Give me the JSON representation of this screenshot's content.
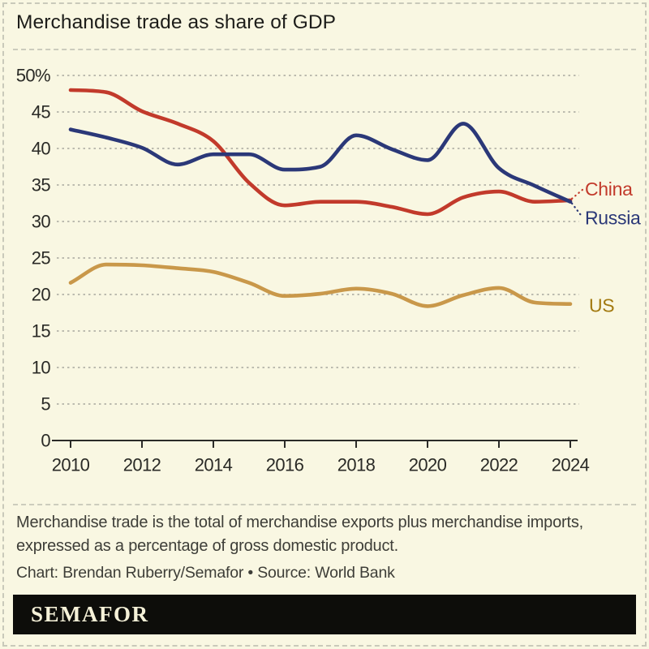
{
  "header": {
    "title": "Merchandise trade as share of GDP"
  },
  "chart_data": {
    "type": "line",
    "title": "Merchandise trade as share of GDP",
    "x": [
      2010,
      2011,
      2012,
      2013,
      2014,
      2015,
      2016,
      2017,
      2018,
      2019,
      2020,
      2021,
      2022,
      2023,
      2024
    ],
    "x_ticks": [
      2010,
      2012,
      2014,
      2016,
      2018,
      2020,
      2022,
      2024
    ],
    "y_ticks": [
      0,
      5,
      10,
      15,
      20,
      25,
      30,
      35,
      40,
      45,
      50
    ],
    "y_tick_labels": [
      "0",
      "5",
      "10",
      "15",
      "20",
      "25",
      "30",
      "35",
      "40",
      "45",
      "50%"
    ],
    "xlim": [
      2010,
      2024
    ],
    "ylim": [
      0,
      50
    ],
    "grid": "horizontal-dashed",
    "legend_position": "end-of-line-labels",
    "series": [
      {
        "name": "China",
        "color": "#c23a2b",
        "label_color": "#c23a2b",
        "values": [
          48.0,
          47.7,
          45.1,
          43.4,
          41.0,
          35.3,
          32.2,
          32.7,
          32.7,
          32.0,
          31.0,
          33.3,
          34.1,
          32.7,
          32.9
        ]
      },
      {
        "name": "Russia",
        "color": "#2b3878",
        "label_color": "#2b3878",
        "values": [
          42.6,
          41.5,
          40.1,
          37.8,
          39.2,
          39.2,
          37.1,
          37.5,
          41.8,
          39.9,
          38.4,
          43.4,
          37.3,
          34.9,
          32.7
        ]
      },
      {
        "name": "US",
        "color": "#c9984a",
        "label_color": "#a2790f",
        "values": [
          21.6,
          24.1,
          24.0,
          23.6,
          23.1,
          21.6,
          19.8,
          20.1,
          20.8,
          20.1,
          18.4,
          19.9,
          20.9,
          18.9,
          18.7
        ]
      }
    ]
  },
  "footer": {
    "note_lines": [
      "Merchandise trade is the total of merchandise exports plus merchandise imports,",
      "expressed as a percentage of gross domestic product."
    ],
    "credit": "Chart: Brendan Ruberry/Semafor • Source: World Bank"
  },
  "logo": {
    "text": "SEMAFOR"
  },
  "colors": {
    "background": "#f9f7e2",
    "frame_dash": "#c9c9ba",
    "grid_dash": "#b3b3a8",
    "axis": "#2b2b28",
    "text": "#1d1d1a",
    "note_text": "#3e3e38",
    "logo_bar": "#0d0d0a",
    "logo_text": "#f5f1d8"
  }
}
